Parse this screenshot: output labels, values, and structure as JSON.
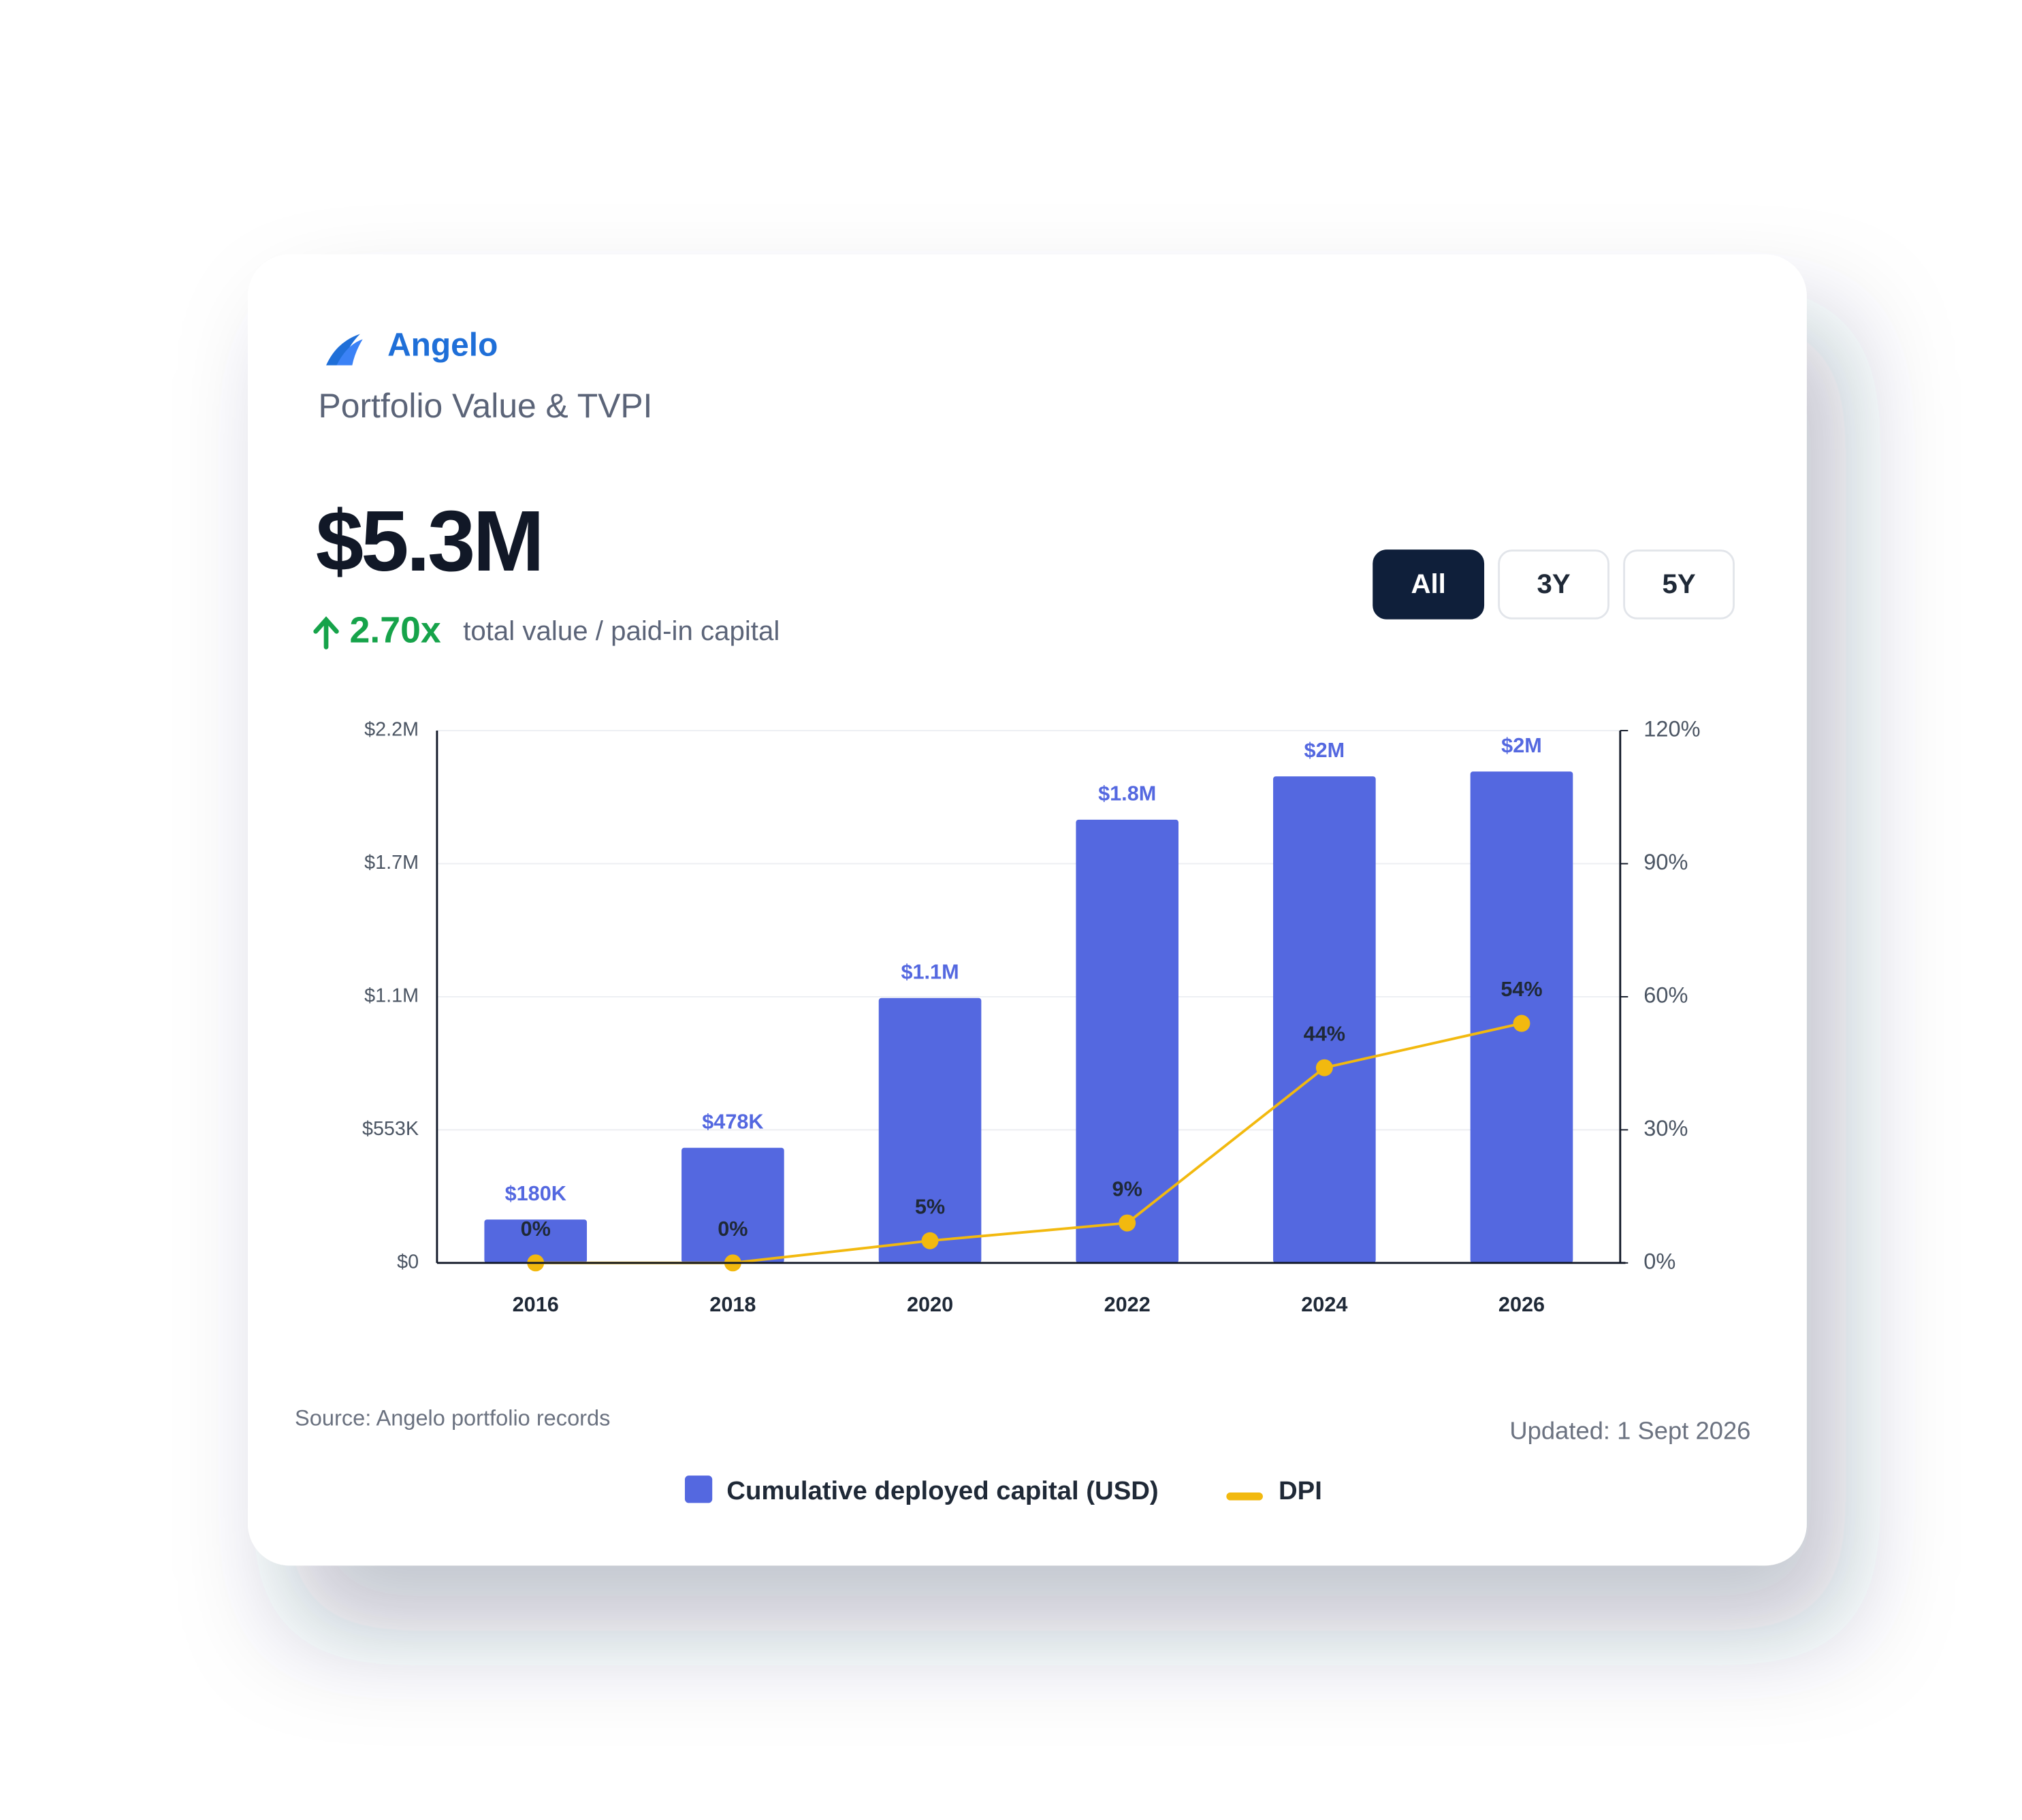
{
  "header": {
    "brand": "Angelo",
    "title": "Portfolio Value & TVPI",
    "value": "$5.3M",
    "change": "2.70x",
    "change_label": "total value / paid-in capital"
  },
  "filters": {
    "options": [
      "All",
      "3Y",
      "5Y"
    ],
    "active": "All"
  },
  "chart_data": {
    "type": "bar",
    "categories": [
      "2016",
      "2018",
      "2020",
      "2022",
      "2024",
      "2026"
    ],
    "series": [
      {
        "name": "Cumulative deployed capital (USD)",
        "color": "#5468e0",
        "values": [
          180000,
          478000,
          1100000,
          1840000,
          2020000,
          2040000
        ],
        "value_labels": [
          "$180K",
          "$478K",
          "$1.1M",
          "$1.8M",
          "$2M",
          "$2M"
        ]
      },
      {
        "name": "DPI",
        "type": "line",
        "axis": "y2",
        "color": "#f2b90f",
        "values": [
          0,
          0,
          5,
          9,
          44,
          54
        ],
        "value_labels": [
          "0%",
          "0%",
          "5%",
          "9%",
          "44%",
          "54%"
        ]
      }
    ],
    "ylim": [
      0,
      2210000
    ],
    "yticks": [
      {
        "value": 0,
        "label": "$0"
      },
      {
        "value": 552500,
        "label": "$553K"
      },
      {
        "value": 1105000,
        "label": "$1.1M"
      },
      {
        "value": 1657500,
        "label": "$1.7M"
      },
      {
        "value": 2210000,
        "label": "$2.2M"
      }
    ],
    "y2lim": [
      0,
      120
    ],
    "y2ticks": [
      {
        "value": 0,
        "label": "0%"
      },
      {
        "value": 30,
        "label": "30%"
      },
      {
        "value": 60,
        "label": "60%"
      },
      {
        "value": 90,
        "label": "90%"
      },
      {
        "value": 120,
        "label": "120%"
      }
    ],
    "grid": true,
    "legend": "bottom"
  },
  "footer": {
    "source": "Source: Angelo portfolio records",
    "updated": "Updated: 1 Sept 2026"
  }
}
